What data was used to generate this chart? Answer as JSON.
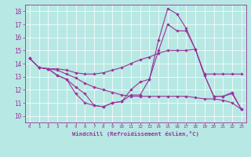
{
  "xlabel": "Windchill (Refroidissement éolien,°C)",
  "background_color": "#b8e8e4",
  "grid_color": "#ffffff",
  "line_color": "#993399",
  "xlim": [
    -0.5,
    23.5
  ],
  "ylim": [
    9.5,
    18.5
  ],
  "xticks": [
    0,
    1,
    2,
    3,
    4,
    5,
    6,
    7,
    8,
    9,
    10,
    11,
    12,
    13,
    14,
    15,
    16,
    17,
    18,
    19,
    20,
    21,
    22,
    23
  ],
  "yticks": [
    10,
    11,
    12,
    13,
    14,
    15,
    16,
    17,
    18
  ],
  "lines": [
    [
      14.4,
      13.7,
      13.6,
      13.1,
      12.8,
      11.7,
      11.0,
      10.8,
      10.7,
      11.0,
      11.1,
      11.6,
      11.6,
      12.8,
      15.8,
      18.2,
      17.8,
      16.7,
      15.1,
      13.1,
      11.5,
      11.5,
      11.8,
      10.5
    ],
    [
      14.4,
      13.7,
      13.6,
      13.6,
      13.5,
      13.3,
      13.2,
      13.2,
      13.3,
      13.5,
      13.7,
      14.0,
      14.3,
      14.5,
      14.8,
      15.0,
      15.0,
      15.0,
      15.1,
      13.2,
      13.2,
      13.2,
      13.2,
      13.2
    ],
    [
      14.4,
      13.7,
      13.6,
      13.1,
      12.8,
      12.2,
      11.7,
      10.8,
      10.7,
      11.0,
      11.1,
      12.0,
      12.6,
      12.8,
      15.0,
      17.0,
      16.5,
      16.5,
      15.1,
      13.1,
      11.5,
      11.5,
      11.7,
      10.5
    ],
    [
      14.4,
      13.7,
      13.6,
      13.5,
      13.2,
      12.9,
      12.5,
      12.2,
      12.0,
      11.8,
      11.6,
      11.5,
      11.5,
      11.5,
      11.5,
      11.5,
      11.5,
      11.5,
      11.4,
      11.3,
      11.3,
      11.2,
      11.0,
      10.5
    ]
  ]
}
